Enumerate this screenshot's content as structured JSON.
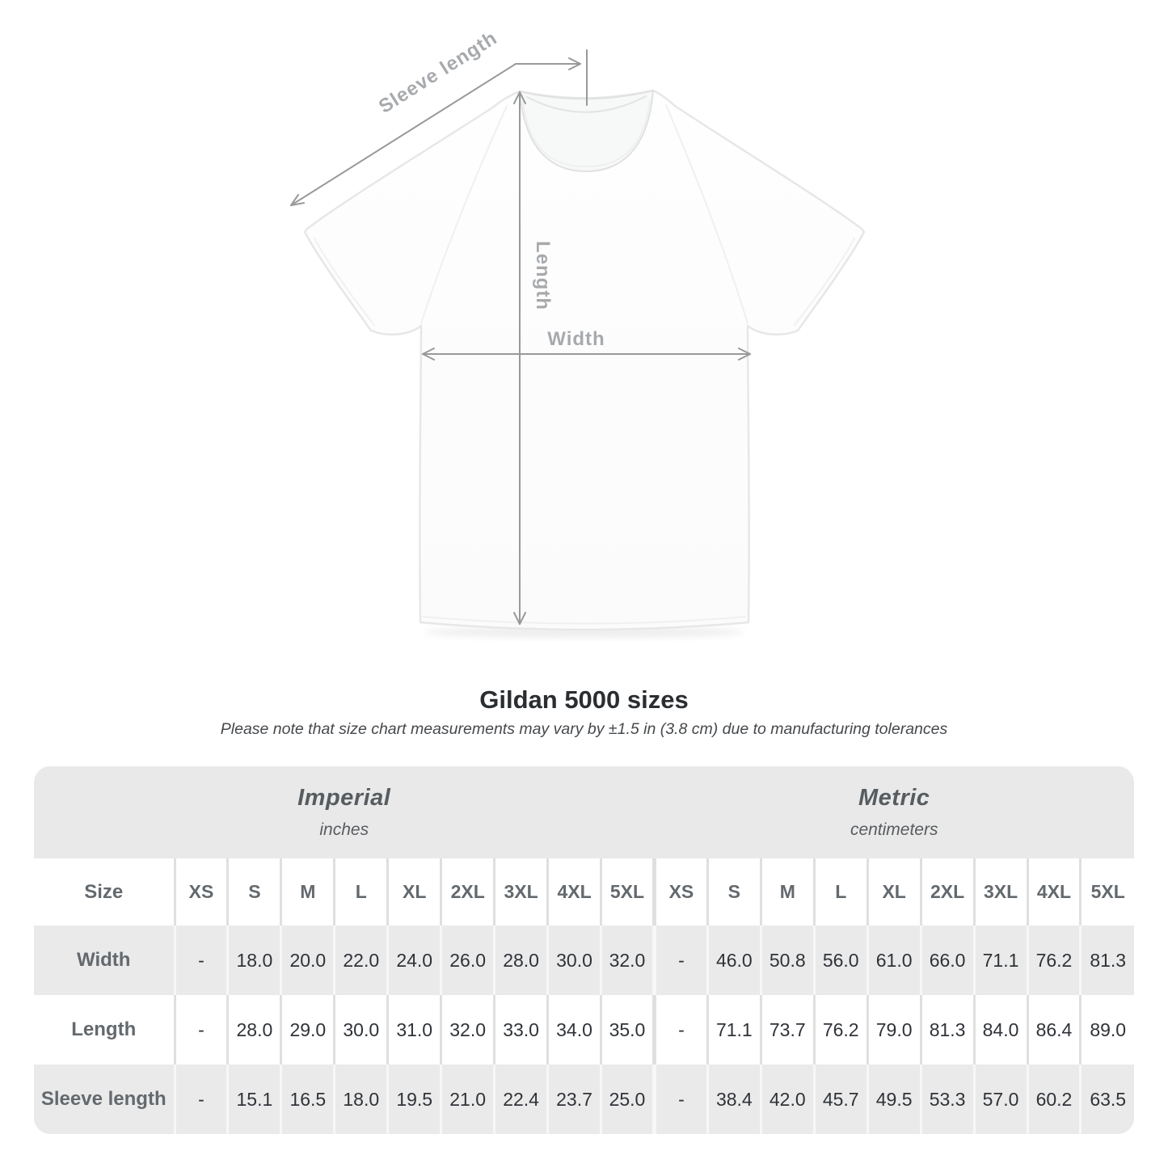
{
  "diagram": {
    "sleeve_length": "Sleeve length",
    "length": "Length",
    "width": "Width"
  },
  "title": "Gildan 5000 sizes",
  "subtitle": "Please note that size chart measurements may vary by ±1.5 in (3.8 cm) due to manufacturing tolerances",
  "table": {
    "size_header": "Size",
    "groups": [
      {
        "label": "Imperial",
        "sublabel": "inches"
      },
      {
        "label": "Metric",
        "sublabel": "centimeters"
      }
    ],
    "sizes": [
      "XS",
      "S",
      "M",
      "L",
      "XL",
      "2XL",
      "3XL",
      "4XL",
      "5XL"
    ],
    "rows": [
      {
        "label": "Width",
        "imperial": [
          "-",
          "18.0",
          "20.0",
          "22.0",
          "24.0",
          "26.0",
          "28.0",
          "30.0",
          "32.0"
        ],
        "metric": [
          "-",
          "46.0",
          "50.8",
          "56.0",
          "61.0",
          "66.0",
          "71.1",
          "76.2",
          "81.3"
        ]
      },
      {
        "label": "Length",
        "imperial": [
          "-",
          "28.0",
          "29.0",
          "30.0",
          "31.0",
          "32.0",
          "33.0",
          "34.0",
          "35.0"
        ],
        "metric": [
          "-",
          "71.1",
          "73.7",
          "76.2",
          "79.0",
          "81.3",
          "84.0",
          "86.4",
          "89.0"
        ]
      },
      {
        "label": "Sleeve length",
        "imperial": [
          "-",
          "15.1",
          "16.5",
          "18.0",
          "19.5",
          "21.0",
          "22.4",
          "23.7",
          "25.0"
        ],
        "metric": [
          "-",
          "38.4",
          "42.0",
          "45.7",
          "49.5",
          "53.3",
          "57.0",
          "60.2",
          "63.5"
        ]
      }
    ]
  },
  "colors": {
    "header_band": "#e9e9e9",
    "row_stripe": "#eaeaea",
    "divider_light": "#dfdfdf",
    "heading_text": "#64696e",
    "value_text": "#2f3338",
    "diagram_label": "#a7aaad",
    "arrow": "#98999b"
  }
}
